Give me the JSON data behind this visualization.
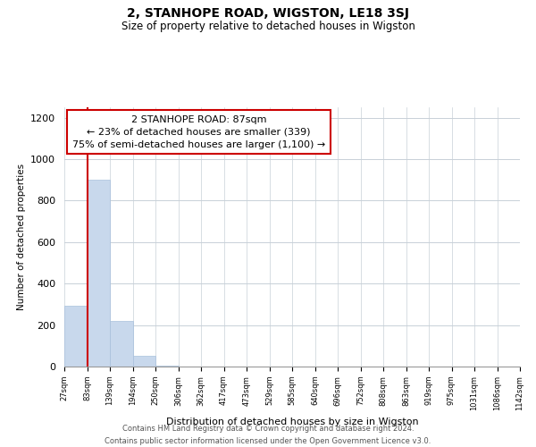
{
  "title": "2, STANHOPE ROAD, WIGSTON, LE18 3SJ",
  "subtitle": "Size of property relative to detached houses in Wigston",
  "bar_values": [
    295,
    900,
    220,
    50,
    5,
    0,
    0,
    0,
    0,
    0,
    0,
    0,
    0,
    0,
    0,
    0,
    0,
    0,
    0,
    0
  ],
  "bar_color": "#c8d8ec",
  "bar_edge_color": "#a8c0dc",
  "tick_labels": [
    "27sqm",
    "83sqm",
    "139sqm",
    "194sqm",
    "250sqm",
    "306sqm",
    "362sqm",
    "417sqm",
    "473sqm",
    "529sqm",
    "585sqm",
    "640sqm",
    "696sqm",
    "752sqm",
    "808sqm",
    "863sqm",
    "919sqm",
    "975sqm",
    "1031sqm",
    "1086sqm",
    "1142sqm"
  ],
  "xlabel": "Distribution of detached houses by size in Wigston",
  "ylabel": "Number of detached properties",
  "ylim": [
    0,
    1250
  ],
  "yticks": [
    0,
    200,
    400,
    600,
    800,
    1000,
    1200
  ],
  "vline_x": 1,
  "vline_color": "#cc0000",
  "annotation_title": "2 STANHOPE ROAD: 87sqm",
  "annotation_line1": "← 23% of detached houses are smaller (339)",
  "annotation_line2": "75% of semi-detached houses are larger (1,100) →",
  "footer_line1": "Contains HM Land Registry data © Crown copyright and database right 2024.",
  "footer_line2": "Contains public sector information licensed under the Open Government Licence v3.0.",
  "bg_color": "#ffffff",
  "grid_color": "#c8d0d8"
}
